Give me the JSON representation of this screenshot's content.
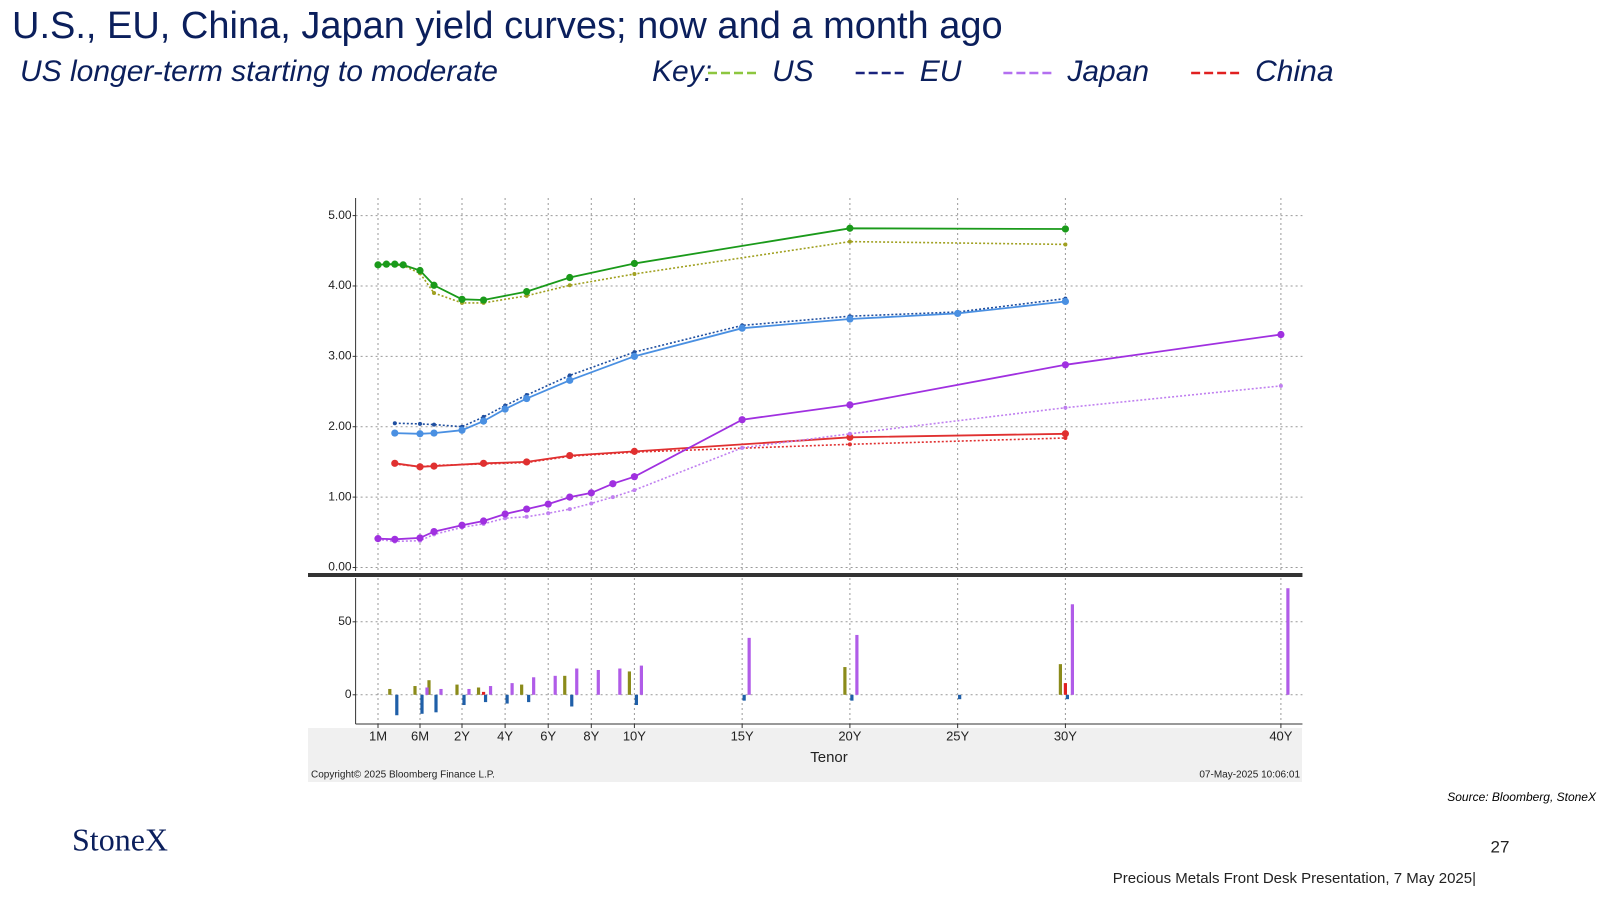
{
  "header": {
    "title": "U.S., EU, China, Japan yield curves; now and a month ago",
    "subtitle": "US longer-term starting to moderate",
    "key_label": "Key:",
    "key": [
      {
        "name": "US",
        "color": "#8dc63f"
      },
      {
        "name": "EU",
        "color": "#1a237e"
      },
      {
        "name": "Japan",
        "color": "#b36ff0"
      },
      {
        "name": "China",
        "color": "#e02020"
      }
    ]
  },
  "chart_data": [
    {
      "type": "line",
      "xlim": [
        0,
        41
      ],
      "ylim": [
        -0.05,
        5.25
      ],
      "yticks": [
        {
          "value": 0,
          "label": "0.00"
        },
        {
          "value": 1,
          "label": "1.00"
        },
        {
          "value": 2,
          "label": "2.00"
        },
        {
          "value": 3,
          "label": "3.00"
        },
        {
          "value": 4,
          "label": "4.00"
        },
        {
          "value": 5,
          "label": "5.00"
        }
      ],
      "grid": true,
      "series": [
        {
          "color": "#a0a020",
          "dash": true,
          "x": [
            0.0833,
            0.1667,
            0.25,
            0.333,
            0.5,
            1,
            2,
            3,
            5,
            7,
            10,
            20,
            30
          ],
          "values": [
            4.3,
            4.31,
            4.3,
            4.29,
            4.18,
            3.9,
            3.76,
            3.76,
            3.86,
            4.01,
            4.17,
            4.63,
            4.59
          ]
        },
        {
          "color": "#1a9a1a",
          "dash": false,
          "x": [
            0.0833,
            0.1667,
            0.25,
            0.333,
            0.5,
            1,
            2,
            3,
            5,
            7,
            10,
            20,
            30
          ],
          "values": [
            4.3,
            4.31,
            4.31,
            4.3,
            4.22,
            4.01,
            3.81,
            3.8,
            3.92,
            4.12,
            4.32,
            4.82,
            4.81
          ]
        },
        {
          "color": "#1f4fa0",
          "dash": true,
          "x": [
            0.25,
            0.5,
            1,
            2,
            3,
            4,
            5,
            7,
            10,
            15,
            20,
            25,
            30
          ],
          "values": [
            2.05,
            2.04,
            2.03,
            2.0,
            2.14,
            2.3,
            2.45,
            2.73,
            3.06,
            3.44,
            3.57,
            3.63,
            3.82
          ]
        },
        {
          "color": "#4a90e2",
          "dash": false,
          "x": [
            0.25,
            0.5,
            1,
            2,
            3,
            4,
            5,
            7,
            10,
            15,
            20,
            25,
            30
          ],
          "values": [
            1.91,
            1.9,
            1.91,
            1.95,
            2.08,
            2.25,
            2.4,
            2.66,
            3.0,
            3.4,
            3.53,
            3.61,
            3.78
          ]
        },
        {
          "color": "#e03030",
          "dash": true,
          "x": [
            0.25,
            0.5,
            1,
            3,
            5,
            7,
            10,
            20,
            30
          ],
          "values": [
            1.47,
            1.43,
            1.45,
            1.47,
            1.49,
            1.58,
            1.64,
            1.75,
            1.84
          ]
        },
        {
          "color": "#e03030",
          "dash": false,
          "x": [
            0.25,
            0.5,
            1,
            3,
            5,
            7,
            10,
            20,
            30
          ],
          "values": [
            1.48,
            1.43,
            1.44,
            1.48,
            1.5,
            1.59,
            1.65,
            1.85,
            1.9
          ]
        },
        {
          "color": "#c080f0",
          "dash": true,
          "x": [
            0.0833,
            0.25,
            0.5,
            1,
            2,
            3,
            4,
            5,
            6,
            7,
            8,
            9,
            10,
            15,
            20,
            30,
            40
          ],
          "values": [
            0.4,
            0.37,
            0.38,
            0.47,
            0.57,
            0.62,
            0.7,
            0.72,
            0.77,
            0.83,
            0.91,
            1.0,
            1.1,
            1.7,
            1.9,
            2.27,
            2.58
          ]
        },
        {
          "color": "#a030e0",
          "dash": false,
          "x": [
            0.0833,
            0.25,
            0.5,
            1,
            2,
            3,
            4,
            5,
            6,
            7,
            8,
            9,
            10,
            15,
            20,
            30,
            40
          ],
          "values": [
            0.41,
            0.4,
            0.42,
            0.51,
            0.6,
            0.66,
            0.76,
            0.83,
            0.9,
            1.0,
            1.06,
            1.19,
            1.29,
            2.1,
            2.31,
            2.88,
            3.31
          ]
        }
      ]
    },
    {
      "type": "bar",
      "xlim": [
        0,
        41
      ],
      "ylim": [
        -20,
        80
      ],
      "yticks": [
        0,
        50
      ],
      "xticks": [
        {
          "value": 0.0833,
          "label": "1M"
        },
        {
          "value": 0.5,
          "label": "6M"
        },
        {
          "value": 2,
          "label": "2Y"
        },
        {
          "value": 4,
          "label": "4Y"
        },
        {
          "value": 6,
          "label": "6Y"
        },
        {
          "value": 8,
          "label": "8Y"
        },
        {
          "value": 10,
          "label": "10Y"
        },
        {
          "value": 15,
          "label": "15Y"
        },
        {
          "value": 20,
          "label": "20Y"
        },
        {
          "value": 25,
          "label": "25Y"
        },
        {
          "value": 30,
          "label": "30Y"
        },
        {
          "value": 40,
          "label": "40Y"
        }
      ],
      "xlabel": "Tenor",
      "grid": true,
      "annotations": [
        "Copyright© 2025 Bloomberg Finance L.P.",
        "07-May-2025 10:06:01"
      ],
      "series": [
        {
          "color": "#8b8b1a",
          "x": [
            0.25,
            0.5,
            1,
            2,
            3,
            5,
            7,
            10,
            20,
            30
          ],
          "values": [
            4,
            6,
            10,
            7,
            5,
            7,
            13,
            16,
            19,
            21
          ]
        },
        {
          "color": "#1f5fa8",
          "x": [
            0.25,
            0.5,
            1,
            2,
            3,
            4,
            5,
            7,
            10,
            15,
            20,
            25,
            30
          ],
          "values": [
            -14,
            -13,
            -12,
            -7,
            -5,
            -6,
            -5,
            -8,
            -7,
            -4,
            -4,
            -3,
            -3
          ]
        },
        {
          "color": "#e02020",
          "x": [
            3,
            30
          ],
          "values": [
            2,
            8
          ]
        },
        {
          "color": "#b05ce8",
          "x": [
            0.5,
            1,
            2,
            3,
            4,
            5,
            6,
            7,
            8,
            9,
            10,
            15,
            20,
            30,
            40
          ],
          "values": [
            5,
            4,
            4,
            6,
            8,
            12,
            13,
            18,
            17,
            18,
            20,
            39,
            41,
            62,
            73
          ]
        }
      ]
    }
  ],
  "footer": {
    "source": "Source: Bloomberg, StoneX",
    "logo": "StoneX",
    "page_number": "27",
    "presentation": "Precious Metals Front Desk Presentation, 7 May 2025|"
  }
}
